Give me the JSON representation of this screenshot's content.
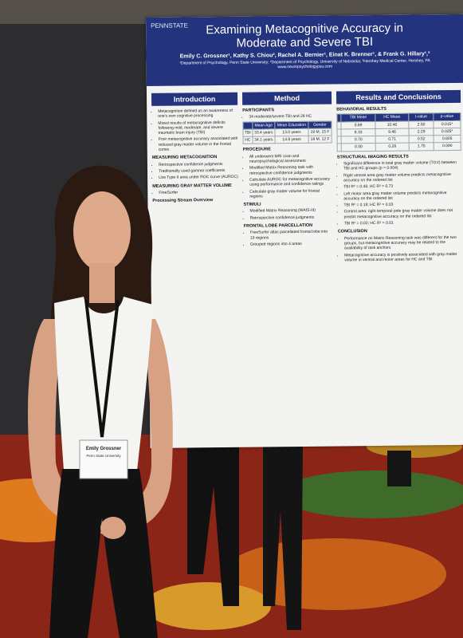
{
  "poster": {
    "logo": "PENNSTATE",
    "title_line1": "Examining Metacognitive Accuracy in",
    "title_line2": "Moderate and Severe TBI",
    "authors": "Emily C. Grossner¹, Kathy S. Chiou², Rachel A. Bernier¹, Einat K. Brenner¹, & Frank G. Hillary¹,³",
    "affiliations": "¹Department of Psychology, Penn State University; ²Department of Psychology, University of Nebraska; ³Hershey Medical Center, Hershey, PA",
    "website": "www.neuropsychologypsu.com",
    "columns": [
      {
        "heading": "Introduction",
        "blocks": [
          {
            "bullets": [
              "Metacognition defined as an awareness of one's own cognitive processing",
              "Mixed results of metacognitive deficits following mild, moderate, and severe traumatic brain injury (TBI)",
              "Poor metacognitive accuracy associated with reduced gray matter volume in the frontal cortex"
            ]
          },
          {
            "subheading": "MEASURING METACOGNITION",
            "bullets": [
              "Retrospective confidence judgments",
              "Traditionally used gamma coefficients",
              "Use Type II area under ROC curve (AUROC)"
            ]
          },
          {
            "subheading": "MEASURING GRAY MATTER VOLUME",
            "bullets": [
              "FreeSurfer"
            ]
          },
          {
            "subheading": "Processing Stream Overview",
            "bullets": []
          }
        ]
      },
      {
        "heading": "Method",
        "blocks": [
          {
            "subheading": "PARTICIPANTS",
            "bullets": [
              "34 moderate/severe TBI and 28 HC"
            ],
            "table": {
              "header": [
                "",
                "Mean Age",
                "Mean Education",
                "Gender"
              ],
              "rows": [
                [
                  "TBI",
                  "33.4 years",
                  "13.0 years",
                  "19 M, 15 F"
                ],
                [
                  "HC",
                  "34.1 years",
                  "14.8 years",
                  "18 M, 12 F"
                ]
              ]
            }
          },
          {
            "subheading": "PROCEDURE",
            "bullets": [
              "All underwent MRI scan and neuropsychological assessment",
              "Modified Matrix Reasoning task with retrospective confidence judgments",
              "Calculate AUROC for metacognitive accuracy using performance and confidence ratings",
              "Calculate gray matter volume for frontal regions"
            ]
          },
          {
            "subheading": "STIMULI",
            "bullets": [
              "Modified Matrix Reasoning (WAIS-III)",
              "Retrospective confidence judgments"
            ]
          },
          {
            "subheading": "FRONTAL LOBE PARCELLATION",
            "bullets": [
              "FreeSurfer atlas parcellated frontal lobe into 19 regions",
              "Grouped regions into 4 areas"
            ]
          }
        ]
      },
      {
        "heading": "Results and Conclusions",
        "blocks": [
          {
            "subheading": "BEHAVIORAL RESULTS",
            "bullets": [],
            "table": {
              "header": [
                "",
                "TBI Mean",
                "HC Mean",
                "t-value",
                "p-value"
              ],
              "rows": [
                [
                  "",
                  "0.69",
                  "10.46",
                  "2.50",
                  "0.015*"
                ],
                [
                  "",
                  "8.33",
                  "9.46",
                  "2.29",
                  "0.025*"
                ],
                [
                  "",
                  "0.70",
                  "0.71",
                  "0.52",
                  "0.605"
                ],
                [
                  "",
                  "0.30",
                  "0.28",
                  "1.75",
                  "0.090"
                ]
              ]
            }
          },
          {
            "subheading": "STRUCTURAL IMAGING RESULTS",
            "bullets": [
              "Significant difference in total gray matter volume (TGV) between TBI and HC groups (p = 0.004)",
              "Right ventral area gray matter volume predicts metacognitive accuracy on the ordered list",
              "TBI R² = 0.46; HC R² = 0.73",
              "Left motor area gray matter volume predicts metacognitive accuracy on the ordered list",
              "TBI R² = 0.18; HC R² = 0.03",
              "Control area: right temporal pole gray matter volume does not predict metacognitive accuracy on the ordered list",
              "TBI R² = 0.02; HC R² = 0.01"
            ]
          },
          {
            "subheading": "CONCLUSION",
            "bullets": [
              "Performance on Matrix Reasoning task was different for the two groups, but metacognitive accuracy may be related to the availability of task anchors",
              "Metacognitive accuracy is positively associated with gray matter volume in ventral and motor areas for HC and TBI"
            ]
          }
        ]
      }
    ]
  },
  "badge": {
    "name": "Emily Grossner",
    "affiliation": "Penn State University"
  }
}
